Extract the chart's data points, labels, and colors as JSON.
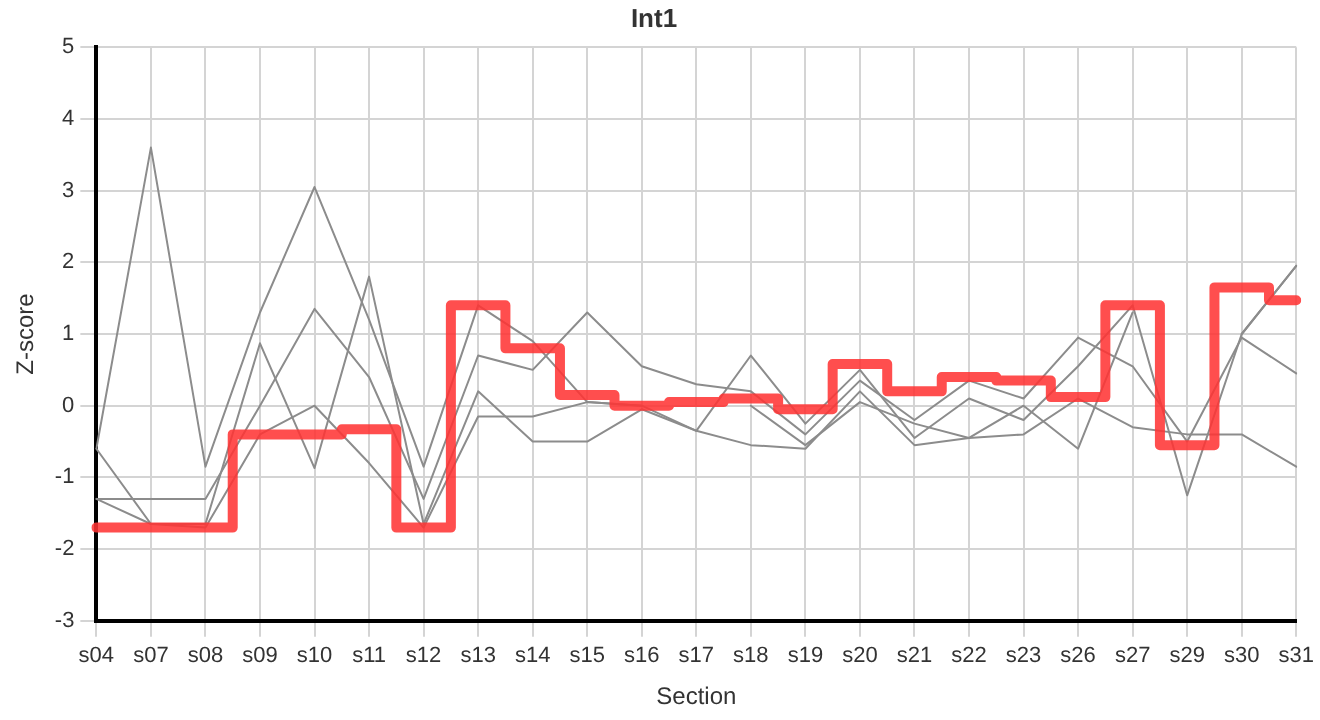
{
  "chart_data": {
    "type": "line",
    "title": "Int1",
    "xlabel": "Section",
    "ylabel": "Z-score",
    "categories": [
      "s04",
      "s07",
      "s08",
      "s09",
      "s10",
      "s11",
      "s12",
      "s13",
      "s14",
      "s15",
      "s16",
      "s17",
      "s18",
      "s19",
      "s20",
      "s21",
      "s22",
      "s23",
      "s26",
      "s27",
      "s29",
      "s30",
      "s31"
    ],
    "series": [
      {
        "color": "#8c8c8c",
        "values": [
          -0.6,
          3.6,
          -0.85,
          1.3,
          3.05,
          1.2,
          -0.85,
          1.4,
          0.9,
          0.05,
          0.0,
          -0.35,
          0.7,
          -0.25,
          0.5,
          -0.45,
          0.1,
          -0.2,
          0.55,
          1.4,
          -1.25,
          1.0,
          1.95
        ]
      },
      {
        "color": "#8c8c8c",
        "values": [
          -1.3,
          -1.3,
          -1.3,
          0.0,
          1.35,
          0.4,
          -1.3,
          0.7,
          0.5,
          1.3,
          0.55,
          0.3,
          0.2,
          -0.4,
          0.35,
          -0.2,
          0.35,
          0.1,
          0.95,
          0.55,
          -0.5,
          0.95,
          0.45
        ]
      },
      {
        "color": "#8c8c8c",
        "values": [
          -0.6,
          -1.65,
          -1.65,
          0.87,
          -0.87,
          1.8,
          -1.65,
          0.2,
          -0.5,
          -0.5,
          -0.05,
          -0.35,
          -0.55,
          -0.6,
          0.2,
          -0.55,
          -0.45,
          0.0,
          -0.6,
          1.3,
          null,
          1.0,
          1.95
        ]
      },
      {
        "color": "#8c8c8c",
        "values": [
          -1.3,
          -1.65,
          -1.7,
          -0.4,
          0.0,
          -0.8,
          -1.7,
          -0.15,
          -0.15,
          0.05,
          0.0,
          null,
          0.0,
          -0.55,
          0.05,
          -0.25,
          -0.45,
          -0.4,
          0.1,
          -0.3,
          -0.4,
          -0.4,
          -0.85
        ]
      },
      {
        "type": "step",
        "color": "#ff3333",
        "values": [
          -1.7,
          -1.7,
          -1.7,
          -0.4,
          -0.4,
          -0.33,
          -1.7,
          1.4,
          0.8,
          0.15,
          0.0,
          0.05,
          0.1,
          -0.05,
          0.58,
          0.2,
          0.4,
          0.35,
          0.12,
          1.4,
          -0.55,
          1.65,
          1.47
        ]
      }
    ],
    "ylim": [
      -3,
      5
    ],
    "yticks": [
      -3,
      -2,
      -1,
      0,
      1,
      2,
      3,
      4,
      5
    ],
    "grid": true,
    "legend": false,
    "marker": "none"
  }
}
